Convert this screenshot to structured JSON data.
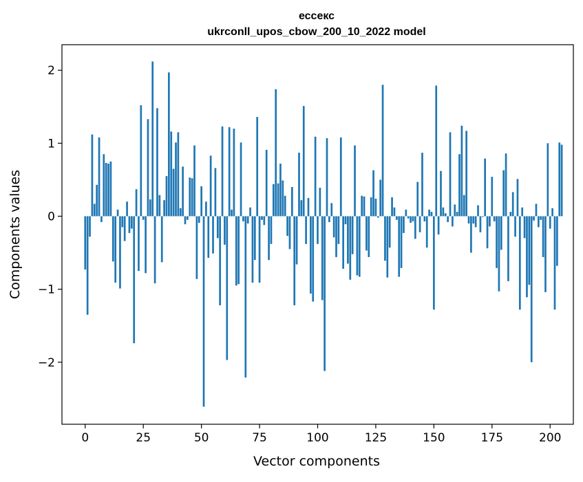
{
  "chart_data": {
    "type": "bar",
    "title_line1": "ессекс",
    "title_line2": "ukrconll_upos_cbow_200_10_2022 model",
    "xlabel": "Vector components",
    "ylabel": "Components values",
    "xlim": [
      -10,
      210
    ],
    "ylim": [
      -2.85,
      2.35
    ],
    "xticks": [
      0,
      25,
      50,
      75,
      100,
      125,
      150,
      175,
      200
    ],
    "xtick_labels": [
      "0",
      "25",
      "50",
      "75",
      "100",
      "125",
      "150",
      "175",
      "200"
    ],
    "yticks": [
      -2,
      -1,
      0,
      1,
      2
    ],
    "ytick_labels": [
      "−2",
      "−1",
      "0",
      "1",
      "2"
    ],
    "grid": false,
    "bar_color": "#1f77b4",
    "values": [
      -0.73,
      -1.35,
      -0.28,
      1.12,
      0.17,
      0.43,
      1.08,
      -0.08,
      0.85,
      0.73,
      0.72,
      0.75,
      -0.62,
      -0.91,
      0.09,
      -0.99,
      -0.15,
      -0.34,
      0.2,
      -0.23,
      -0.17,
      -1.74,
      0.37,
      -0.75,
      1.52,
      -0.05,
      -0.78,
      1.33,
      0.23,
      2.12,
      -0.92,
      1.48,
      0.29,
      -0.63,
      0.22,
      0.55,
      1.97,
      1.16,
      0.65,
      1.01,
      1.15,
      0.11,
      0.68,
      -0.11,
      -0.05,
      0.53,
      0.52,
      0.97,
      -0.86,
      -0.09,
      0.41,
      -2.61,
      0.2,
      -0.57,
      0.83,
      -0.51,
      0.66,
      -0.3,
      -1.22,
      1.23,
      -0.39,
      -1.97,
      1.22,
      0.09,
      1.2,
      -0.95,
      -0.93,
      1.01,
      -0.07,
      -2.21,
      -0.1,
      0.12,
      -0.91,
      -0.6,
      1.36,
      -0.91,
      -0.05,
      -0.12,
      0.91,
      -0.6,
      -0.38,
      0.44,
      1.74,
      0.45,
      0.72,
      0.49,
      0.28,
      -0.27,
      -0.45,
      0.4,
      -1.22,
      -0.66,
      0.87,
      0.22,
      1.51,
      -0.38,
      0.25,
      -1.06,
      -1.17,
      1.09,
      -0.38,
      0.39,
      -1.15,
      -2.12,
      1.07,
      -0.08,
      0.18,
      -0.29,
      -0.56,
      -0.38,
      1.08,
      -0.72,
      -0.11,
      -0.65,
      -0.87,
      -0.52,
      0.97,
      -0.81,
      -0.83,
      0.28,
      0.27,
      -0.47,
      -0.56,
      0.26,
      0.63,
      0.24,
      -0.02,
      0.5,
      1.8,
      -0.61,
      -0.84,
      -0.43,
      0.26,
      0.12,
      -0.05,
      -0.83,
      -0.71,
      -0.23,
      0.09,
      -0.03,
      -0.09,
      -0.07,
      -0.31,
      0.47,
      -0.22,
      0.87,
      -0.07,
      -0.43,
      0.09,
      0.06,
      -1.28,
      1.79,
      -0.25,
      0.62,
      0.12,
      0.04,
      -0.08,
      1.15,
      -0.14,
      0.16,
      0.06,
      0.85,
      1.24,
      0.29,
      1.17,
      -0.1,
      -0.5,
      -0.1,
      -0.15,
      0.15,
      -0.22,
      -0.01,
      0.79,
      -0.44,
      -0.14,
      0.54,
      -0.07,
      -0.71,
      -1.03,
      -0.46,
      0.63,
      0.86,
      -0.89,
      0.06,
      0.33,
      -0.28,
      0.51,
      -1.28,
      0.12,
      -0.3,
      -1.11,
      -0.94,
      -2.0,
      -0.06,
      0.17,
      -0.15,
      -0.05,
      -0.56,
      -1.04,
      1.0,
      -0.17,
      0.11,
      -1.28,
      -0.68,
      1.01,
      0.98
    ]
  }
}
